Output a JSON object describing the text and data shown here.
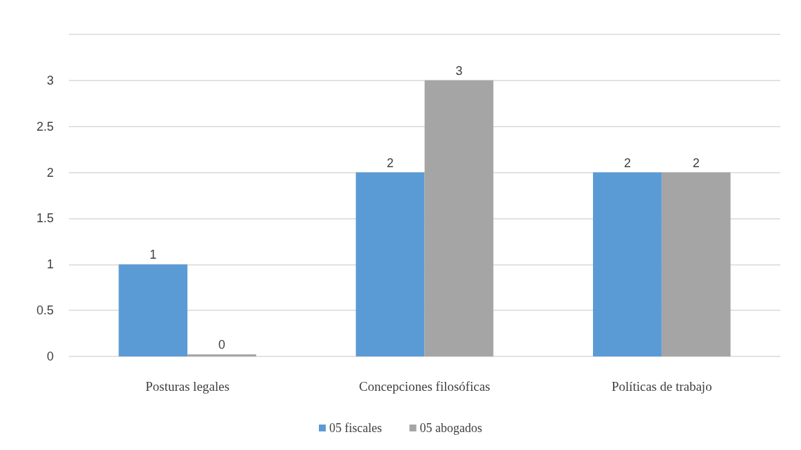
{
  "chart_data": {
    "type": "bar",
    "categories": [
      "Posturas legales",
      "Concepciones filosóficas",
      "Políticas de trabajo"
    ],
    "series": [
      {
        "name": "05 fiscales",
        "color": "#5b9bd5",
        "values": [
          1,
          2,
          2
        ]
      },
      {
        "name": "05 abogados",
        "color": "#a5a5a5",
        "values": [
          0,
          3,
          2
        ]
      }
    ],
    "ylim": [
      0,
      3.5
    ],
    "yticks": [
      0,
      0.5,
      1,
      1.5,
      2,
      2.5,
      3,
      {
        "value": 3.5,
        "label": null
      }
    ],
    "grid": true,
    "legend": "bottom",
    "data_labels": true
  }
}
